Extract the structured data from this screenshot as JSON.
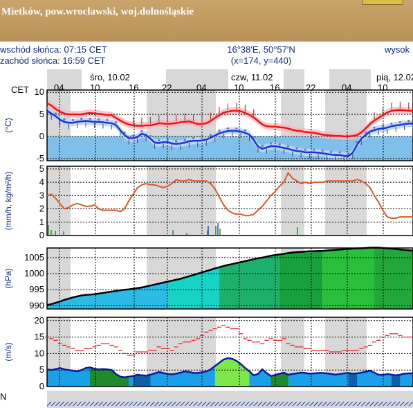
{
  "header": {
    "location": "Mietków, pow.wrocławski, woj.dolnośląskie"
  },
  "info": {
    "sunrise": "wschód słońca: 07:15 CET",
    "sunset": "zachód słońca: 16:59 CET",
    "coords": "16°38'E, 50°57'N",
    "grid": "(x=174,  y=440)",
    "right_cut": "wysok"
  },
  "timeline": {
    "zone": "CET",
    "days": [
      "śro, 10.02",
      "czw, 11.02",
      "pią, 12.02"
    ],
    "hours": [
      "04",
      "10",
      "16",
      "22",
      "04",
      "10",
      "16",
      "22",
      "04",
      "10"
    ]
  },
  "colors": {
    "temp": "#e8141c",
    "dew": "#1535d8",
    "precip": "#d85a28",
    "pressure_line": "#000000",
    "wind_line": "#0a1a9a"
  },
  "chart_data": [
    {
      "type": "line",
      "ylabel": "(°C)",
      "yticks": [
        10,
        5,
        0,
        -5
      ],
      "ylim": [
        -5.5,
        10.5
      ],
      "x": [
        0,
        1,
        2,
        3,
        4,
        5,
        6,
        7,
        8,
        9,
        10,
        11,
        12,
        13,
        14,
        15,
        16,
        17,
        18,
        19,
        20,
        21,
        22,
        23,
        24,
        25,
        26,
        27,
        28,
        29,
        30,
        31,
        32,
        33,
        34,
        35,
        36,
        37,
        38,
        39,
        40,
        41,
        42,
        43,
        44,
        45,
        46,
        47,
        48,
        49,
        50,
        51,
        52,
        53,
        54,
        55,
        56,
        57,
        58,
        59,
        60,
        61,
        62,
        63,
        64,
        65,
        66,
        67,
        68,
        69,
        70,
        71,
        72,
        73,
        74,
        75,
        76,
        77,
        78,
        79,
        80,
        81,
        82,
        83,
        84,
        85
      ],
      "series": [
        {
          "name": "temperature",
          "values": [
            7.5,
            7,
            6.2,
            5.6,
            5.2,
            5,
            5,
            5,
            5,
            5.2,
            5.3,
            5.2,
            5.1,
            5,
            4.8,
            4.8,
            4.2,
            3.6,
            3.1,
            2.7,
            2.5,
            2.4,
            2.4,
            2.5,
            2.5,
            2.7,
            3,
            2.9,
            2.8,
            2.9,
            3,
            3.2,
            3.3,
            3.4,
            3.1,
            2.8,
            2.8,
            3,
            3.5,
            4.2,
            4.8,
            5.4,
            5.6,
            5.8,
            5.8,
            5.7,
            5.3,
            4.9,
            4.3,
            3.5,
            2.7,
            2.3,
            2.2,
            2.2,
            2.1,
            2,
            1.8,
            1.5,
            1.3,
            1.2,
            1,
            0.9,
            0.8,
            0.6,
            0.4,
            0.3,
            0.2,
            0.1,
            0.1,
            0,
            0,
            0.1,
            0.3,
            0.9,
            1.8,
            2.8,
            3.6,
            4.2,
            4.8,
            5.4,
            5.8,
            5.9,
            6,
            5.9,
            5.8,
            5.8
          ]
        },
        {
          "name": "dew_point",
          "values": [
            5.8,
            5.2,
            4.6,
            3.8,
            3.3,
            3.1,
            3.1,
            3.3,
            3.4,
            3.5,
            3.4,
            3.3,
            3.3,
            3.2,
            3.1,
            3,
            2.6,
            1.4,
            0.3,
            -0.4,
            -0.4,
            -0.1,
            0.6,
            0.3,
            -0.5,
            -1.4,
            -1.5,
            -1.3,
            -1.3,
            -1.6,
            -1.7,
            -1.6,
            -1.4,
            -1.1,
            -1,
            -1,
            -0.9,
            -0.7,
            -0.3,
            0.2,
            0.7,
            1,
            1.2,
            1.3,
            1.2,
            1.1,
            0.8,
            0.4,
            -0.8,
            -2.3,
            -2.8,
            -2.5,
            -2.2,
            -2.2,
            -2.4,
            -2.6,
            -2.8,
            -3.1,
            -3.3,
            -3.4,
            -3.6,
            -3.6,
            -3.6,
            -3.7,
            -3.8,
            -4,
            -4.1,
            -4.2,
            -4.2,
            -4.4,
            -4.5,
            -3.7,
            -1.9,
            -0.5,
            0.3,
            1.1,
            1.4,
            1.7,
            1.8,
            2,
            2.3,
            2.5,
            2.6,
            2.8,
            2.9,
            2.9
          ]
        }
      ]
    },
    {
      "type": "area",
      "ylabel": "(mm/h, kg/m²/h)",
      "yticks": [
        5,
        4,
        3,
        2,
        1,
        0
      ],
      "ylim": [
        0,
        5.2
      ],
      "x": [
        0,
        1,
        2,
        3,
        4,
        5,
        6,
        7,
        8,
        9,
        10,
        11,
        12,
        13,
        14,
        15,
        16,
        17,
        18,
        19,
        20,
        21,
        22,
        23,
        24,
        25,
        26,
        27,
        28,
        29,
        30,
        31,
        32,
        33,
        34,
        35,
        36,
        37,
        38,
        39,
        40,
        41,
        42,
        43,
        44,
        45,
        46,
        47,
        48,
        49,
        50,
        51,
        52,
        53,
        54,
        55,
        56,
        57,
        58,
        59,
        60,
        61,
        62,
        63,
        64,
        65,
        66,
        67,
        68,
        69,
        70,
        71,
        72,
        73,
        74,
        75,
        76,
        77,
        78,
        79,
        80,
        81,
        82,
        83,
        84,
        85
      ],
      "series": [
        {
          "name": "precipitation",
          "values": [
            3,
            3.1,
            2.8,
            2.4,
            2,
            2.1,
            2.3,
            2.4,
            2.3,
            2.2,
            2.2,
            2.3,
            2,
            1.9,
            1.9,
            1.9,
            1.9,
            1.8,
            2,
            2.6,
            3.1,
            3.6,
            3.8,
            3.9,
            3.8,
            3.8,
            3.7,
            3.6,
            3.7,
            3.9,
            4.2,
            4.1,
            4.1,
            4.2,
            4.1,
            4.1,
            4.1,
            4.1,
            3.9,
            3.5,
            2.9,
            2.3,
            1.9,
            1.7,
            1.6,
            1.6,
            1.5,
            1.5,
            1.6,
            1.9,
            2.2,
            2.6,
            3,
            3.3,
            3.7,
            4,
            4.7,
            4.3,
            4.1,
            3.9,
            4,
            3.9,
            4,
            4,
            4,
            4.1,
            4.1,
            4.1,
            4.1,
            4.1,
            4.1,
            4.1,
            4.2,
            4.1,
            3.9,
            3.6,
            3,
            2.5,
            1.9,
            1.4,
            1.3,
            1.3,
            1.4,
            1.4,
            1.4,
            1.4
          ]
        }
      ]
    },
    {
      "type": "area",
      "ylabel": "(hPa)",
      "yticks": [
        1005,
        1000,
        995,
        990
      ],
      "ylim": [
        989,
        1008
      ],
      "x": [
        0,
        1,
        2,
        3,
        4,
        5,
        6,
        7,
        8,
        9,
        10,
        11,
        12,
        13,
        14,
        15,
        16,
        17,
        18,
        19,
        20,
        21,
        22,
        23,
        24,
        25,
        26,
        27,
        28,
        29,
        30,
        31,
        32,
        33,
        34,
        35,
        36,
        37,
        38,
        39,
        40,
        41,
        42,
        43,
        44,
        45,
        46,
        47,
        48,
        49,
        50,
        51,
        52,
        53,
        54,
        55,
        56,
        57,
        58,
        59,
        60,
        61,
        62,
        63,
        64,
        65,
        66,
        67,
        68,
        69,
        70,
        71,
        72,
        73,
        74,
        75,
        76,
        77,
        78,
        79,
        80,
        81,
        82,
        83,
        84,
        85
      ],
      "series": [
        {
          "name": "pressure",
          "values": [
            990.2,
            990.5,
            990.9,
            991.3,
            991.8,
            992.2,
            992.6,
            992.9,
            993.2,
            993.4,
            993.5,
            993.6,
            993.8,
            994,
            994.2,
            994.4,
            994.6,
            994.8,
            995,
            995.1,
            995.3,
            995.5,
            995.7,
            996,
            996.3,
            996.6,
            996.9,
            997.2,
            997.5,
            997.8,
            998.1,
            998.4,
            998.8,
            999.2,
            999.6,
            1000,
            1000.4,
            1000.8,
            1001.2,
            1001.6,
            1002,
            1002.4,
            1002.7,
            1003,
            1003.3,
            1003.6,
            1003.9,
            1004.2,
            1004.5,
            1004.8,
            1005,
            1005.3,
            1005.6,
            1005.8,
            1006,
            1006.2,
            1006.4,
            1006.6,
            1006.7,
            1006.8,
            1006.9,
            1007,
            1007,
            1007.1,
            1007.1,
            1007.2,
            1007.3,
            1007.4,
            1007.5,
            1007.6,
            1007.7,
            1007.8,
            1007.9,
            1007.9,
            1008,
            1008.1,
            1008.1,
            1008.1,
            1008,
            1007.9,
            1007.8,
            1007.7,
            1007.5,
            1007.4,
            1007.3,
            1007.2
          ]
        }
      ]
    },
    {
      "type": "line",
      "ylabel": "(m/s)",
      "yticks": [
        20,
        15,
        10,
        5,
        0
      ],
      "ylim": [
        0,
        21
      ],
      "x": [
        0,
        1,
        2,
        3,
        4,
        5,
        6,
        7,
        8,
        9,
        10,
        11,
        12,
        13,
        14,
        15,
        16,
        17,
        18,
        19,
        20,
        21,
        22,
        23,
        24,
        25,
        26,
        27,
        28,
        29,
        30,
        31,
        32,
        33,
        34,
        35,
        36,
        37,
        38,
        39,
        40,
        41,
        42,
        43,
        44,
        45,
        46,
        47,
        48,
        49,
        50,
        51,
        52,
        53,
        54,
        55,
        56,
        57,
        58,
        59,
        60,
        61,
        62,
        63,
        64,
        65,
        66,
        67,
        68,
        69,
        70,
        71,
        72,
        73,
        74,
        75,
        76,
        77,
        78,
        79,
        80,
        81,
        82,
        83,
        84,
        85
      ],
      "series": [
        {
          "name": "wind_speed",
          "values": [
            5.2,
            5,
            5.3,
            5.6,
            5.2,
            5,
            4.8,
            4.6,
            5,
            5.6,
            5.8,
            5.4,
            5.2,
            5.3,
            5.2,
            5,
            3.8,
            3,
            2.8,
            3,
            3.2,
            3.6,
            3.4,
            3.3,
            3.6,
            4,
            4.4,
            4.1,
            3.8,
            3.7,
            3.9,
            4.2,
            4.6,
            4.4,
            4.1,
            4.1,
            4.3,
            4.6,
            5.2,
            6.2,
            7.2,
            8.2,
            8.6,
            8.4,
            7.8,
            6.8,
            5.6,
            4.6,
            3.4,
            3.8,
            5.2,
            4.1,
            3.2,
            3.5,
            3.9,
            4.2,
            3.6,
            3.8,
            4,
            4.2,
            4.1,
            3.9,
            4,
            4.1,
            4.1,
            4,
            3.8,
            3.6,
            3.8,
            4,
            4.1,
            3.9,
            4,
            4.2,
            4.5,
            4.8,
            4.2,
            3.6,
            3.5,
            3.8,
            3.6,
            3.4,
            3.6,
            3.9,
            4,
            4
          ]
        },
        {
          "name": "wind_gusts",
          "values": [
            15,
            14.5,
            14,
            13,
            12.5,
            12,
            11.5,
            11,
            11,
            11.5,
            11.5,
            12,
            12.5,
            13,
            13,
            12.5,
            12,
            11,
            10,
            9.5,
            9.5,
            10.5,
            10.5,
            10.5,
            11,
            11,
            12,
            11.5,
            11.5,
            11,
            12,
            13,
            13.5,
            13.5,
            14,
            14.5,
            15.5,
            16.5,
            17,
            17.5,
            18,
            18.5,
            18,
            17.5,
            17.5,
            16,
            14.5,
            14,
            13.5,
            13.5,
            13,
            14,
            14.5,
            14,
            14,
            14.5,
            13,
            12.5,
            12,
            12,
            11.5,
            11.5,
            11,
            11,
            11,
            11,
            10.5,
            10.5,
            10.5,
            11,
            11,
            11,
            11,
            11.5,
            12,
            12.5,
            13.5,
            14,
            15,
            15.5,
            16,
            16,
            15.5,
            15,
            15,
            15
          ]
        }
      ]
    }
  ]
}
